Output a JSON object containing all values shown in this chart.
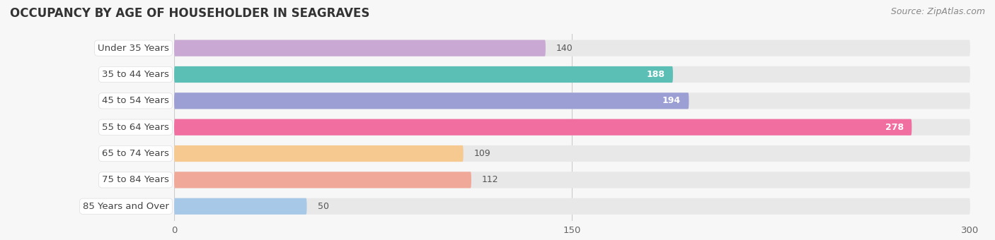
{
  "title": "OCCUPANCY BY AGE OF HOUSEHOLDER IN SEAGRAVES",
  "source": "Source: ZipAtlas.com",
  "categories": [
    "Under 35 Years",
    "35 to 44 Years",
    "45 to 54 Years",
    "55 to 64 Years",
    "65 to 74 Years",
    "75 to 84 Years",
    "85 Years and Over"
  ],
  "values": [
    140,
    188,
    194,
    278,
    109,
    112,
    50
  ],
  "bar_colors": [
    "#c9a8d4",
    "#5bbfb5",
    "#9b9fd4",
    "#f06fa0",
    "#f5c990",
    "#f0a898",
    "#a8c8e8"
  ],
  "xlim": [
    0,
    300
  ],
  "xticks": [
    0,
    150,
    300
  ],
  "background_color": "#f7f7f7",
  "bar_background_color": "#e8e8e8",
  "title_fontsize": 12,
  "label_fontsize": 9.5,
  "value_fontsize": 9,
  "source_fontsize": 9,
  "inside_label_threshold": 160,
  "white_label_box_color": "white"
}
